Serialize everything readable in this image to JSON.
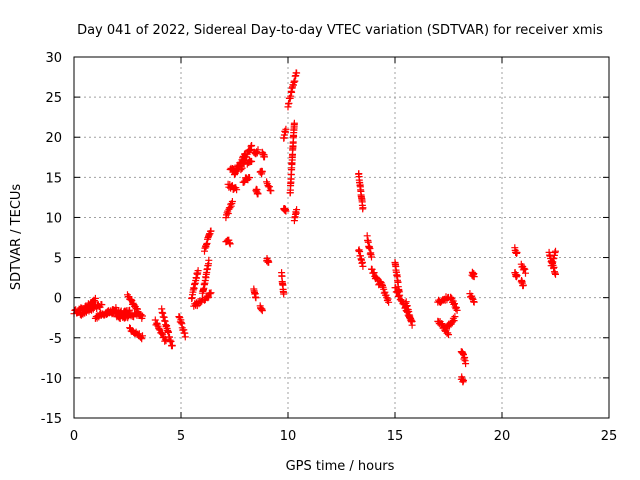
{
  "chart_data": {
    "type": "scatter",
    "title": "Day 041 of 2022, Sidereal Day-to-day VTEC variation (SDTVAR) for receiver xmis",
    "xlabel": "GPS time / hours",
    "ylabel": "SDTVAR / TECUs",
    "xlim": [
      0,
      25
    ],
    "ylim": [
      -15,
      30
    ],
    "xticks": [
      0,
      5,
      10,
      15,
      20,
      25
    ],
    "yticks": [
      -15,
      -10,
      -5,
      0,
      5,
      10,
      15,
      20,
      25,
      30
    ],
    "grid": true,
    "marker": "plus",
    "color": "#ff0000",
    "series": [
      {
        "name": "SDTVAR",
        "segments": [
          [
            0.0,
            0.6,
            -1.8,
            -1.2
          ],
          [
            0.3,
            1.3,
            -2.0,
            -0.9
          ],
          [
            0.6,
            1.0,
            -1.2,
            -0.2
          ],
          [
            1.0,
            2.0,
            -2.4,
            -1.4
          ],
          [
            1.5,
            2.6,
            -1.9,
            -1.7
          ],
          [
            2.0,
            3.1,
            -2.5,
            -2.0
          ],
          [
            2.5,
            3.2,
            0.2,
            -2.5
          ],
          [
            2.6,
            3.2,
            -3.8,
            -5.0
          ],
          [
            3.8,
            4.3,
            -3.0,
            -5.5
          ],
          [
            4.1,
            4.6,
            -1.6,
            -6.2
          ],
          [
            4.9,
            5.2,
            -2.2,
            -4.8
          ],
          [
            5.5,
            5.8,
            0.0,
            3.5
          ],
          [
            5.6,
            6.0,
            -1.0,
            -0.4
          ],
          [
            6.0,
            6.3,
            0.5,
            4.5
          ],
          [
            6.1,
            6.4,
            -0.2,
            0.6
          ],
          [
            6.1,
            6.4,
            6.0,
            8.5
          ],
          [
            7.1,
            7.3,
            7.2,
            6.8
          ],
          [
            7.1,
            7.4,
            10.0,
            12.0
          ],
          [
            7.2,
            7.6,
            14.0,
            13.5
          ],
          [
            7.3,
            7.6,
            16.0,
            15.7
          ],
          [
            7.5,
            8.0,
            15.5,
            18.0
          ],
          [
            7.8,
            8.3,
            16.0,
            19.0
          ],
          [
            7.9,
            8.2,
            14.5,
            15.0
          ],
          [
            8.1,
            8.3,
            16.8,
            17.2
          ],
          [
            8.4,
            8.6,
            18.0,
            18.2
          ],
          [
            8.7,
            8.8,
            15.8,
            15.6
          ],
          [
            8.5,
            8.6,
            13.5,
            13.0
          ],
          [
            8.4,
            8.5,
            1.2,
            -0.2
          ],
          [
            8.8,
            8.9,
            18.0,
            17.5
          ],
          [
            9.0,
            9.2,
            14.2,
            13.3
          ],
          [
            9.0,
            9.1,
            4.8,
            4.3
          ],
          [
            8.7,
            8.8,
            -1.2,
            -1.4
          ],
          [
            9.8,
            9.9,
            20.0,
            21.0
          ],
          [
            9.8,
            9.9,
            11.2,
            11.0
          ],
          [
            9.7,
            9.8,
            3.0,
            0.5
          ],
          [
            10.0,
            10.4,
            24.0,
            28.0
          ],
          [
            10.1,
            10.3,
            13.0,
            22.0
          ],
          [
            10.3,
            10.4,
            9.5,
            11.0
          ],
          [
            13.3,
            13.5,
            15.5,
            11.0
          ],
          [
            13.3,
            13.5,
            6.0,
            4.0
          ],
          [
            13.7,
            13.9,
            7.5,
            5.0
          ],
          [
            13.9,
            14.3,
            3.5,
            1.5
          ],
          [
            14.3,
            14.7,
            2.0,
            -0.5
          ],
          [
            15.0,
            15.2,
            4.5,
            0.5
          ],
          [
            15.0,
            15.8,
            1.2,
            -3.0
          ],
          [
            15.5,
            15.8,
            -0.5,
            -3.2
          ],
          [
            17.0,
            17.5,
            -0.5,
            0.0
          ],
          [
            17.0,
            17.5,
            -2.8,
            -4.5
          ],
          [
            17.4,
            17.8,
            -3.8,
            -2.5
          ],
          [
            17.6,
            17.9,
            0.0,
            -1.5
          ],
          [
            18.1,
            18.3,
            -6.5,
            -8.0
          ],
          [
            18.1,
            18.2,
            -10.0,
            -10.5
          ],
          [
            18.6,
            18.7,
            3.0,
            2.8
          ],
          [
            18.5,
            18.7,
            0.5,
            -0.7
          ],
          [
            20.6,
            20.7,
            6.0,
            5.5
          ],
          [
            20.6,
            20.7,
            3.0,
            2.8
          ],
          [
            20.9,
            21.1,
            4.0,
            3.2
          ],
          [
            20.9,
            21.0,
            2.0,
            1.5
          ],
          [
            22.2,
            22.5,
            5.5,
            3.0
          ],
          [
            22.3,
            22.5,
            4.0,
            5.7
          ]
        ]
      }
    ]
  }
}
